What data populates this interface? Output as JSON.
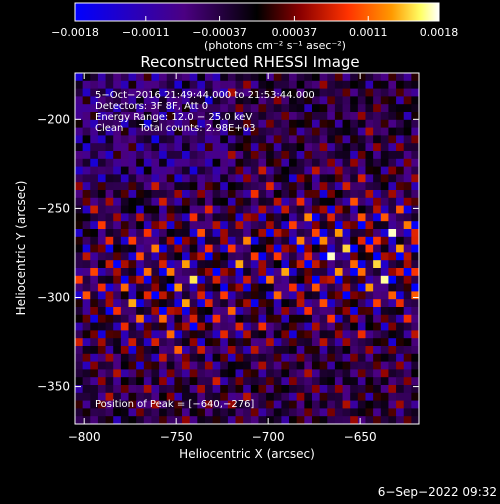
{
  "chart_data": {
    "type": "heatmap",
    "title": "Reconstructed RHESSI Image",
    "xlabel": "Heliocentric X (arcsec)",
    "ylabel": "Heliocentric Y (arcsec)",
    "xlim": [
      -805,
      -618
    ],
    "ylim": [
      -371,
      -174
    ],
    "xticks": [
      {
        "value": -800,
        "label": "−800"
      },
      {
        "value": -750,
        "label": "−750"
      },
      {
        "value": -700,
        "label": "−700"
      },
      {
        "value": -650,
        "label": "−650"
      }
    ],
    "yticks": [
      {
        "value": -200,
        "label": "−200"
      },
      {
        "value": -250,
        "label": "−250"
      },
      {
        "value": -300,
        "label": "−300"
      },
      {
        "value": -350,
        "label": "−350"
      }
    ],
    "colorbar": {
      "range": [
        -0.0018,
        0.0018
      ],
      "ticks": [
        {
          "value": -0.0018,
          "label": "−0.0018"
        },
        {
          "value": -0.0011,
          "label": "−0.0011"
        },
        {
          "value": -0.00037,
          "label": "−0.00037"
        },
        {
          "value": 0.00037,
          "label": "0.00037"
        },
        {
          "value": 0.0011,
          "label": "0.0011"
        },
        {
          "value": 0.0018,
          "label": "0.0018"
        }
      ],
      "unit": "(photons cm⁻² s⁻¹ asec⁻²)",
      "colormap": [
        "#0000ff",
        "#4b0082",
        "#000000",
        "#8b0000",
        "#ff3300",
        "#ff9900",
        "#ffff66",
        "#ffffff"
      ]
    },
    "annotations": [
      "5−Oct−2016 21:49:44.000 to 21:53:44.000",
      "Detectors: 3F 8F, Att 0",
      "Energy Range: 12.0 − 25.0 keV",
      "Clean     Total counts: 2.98E+03",
      "Position of Peak = [−640,−276]"
    ],
    "peak": {
      "x": -640,
      "y": -276
    }
  },
  "footer": {
    "timestamp": "6−Sep−2022 09:32"
  }
}
